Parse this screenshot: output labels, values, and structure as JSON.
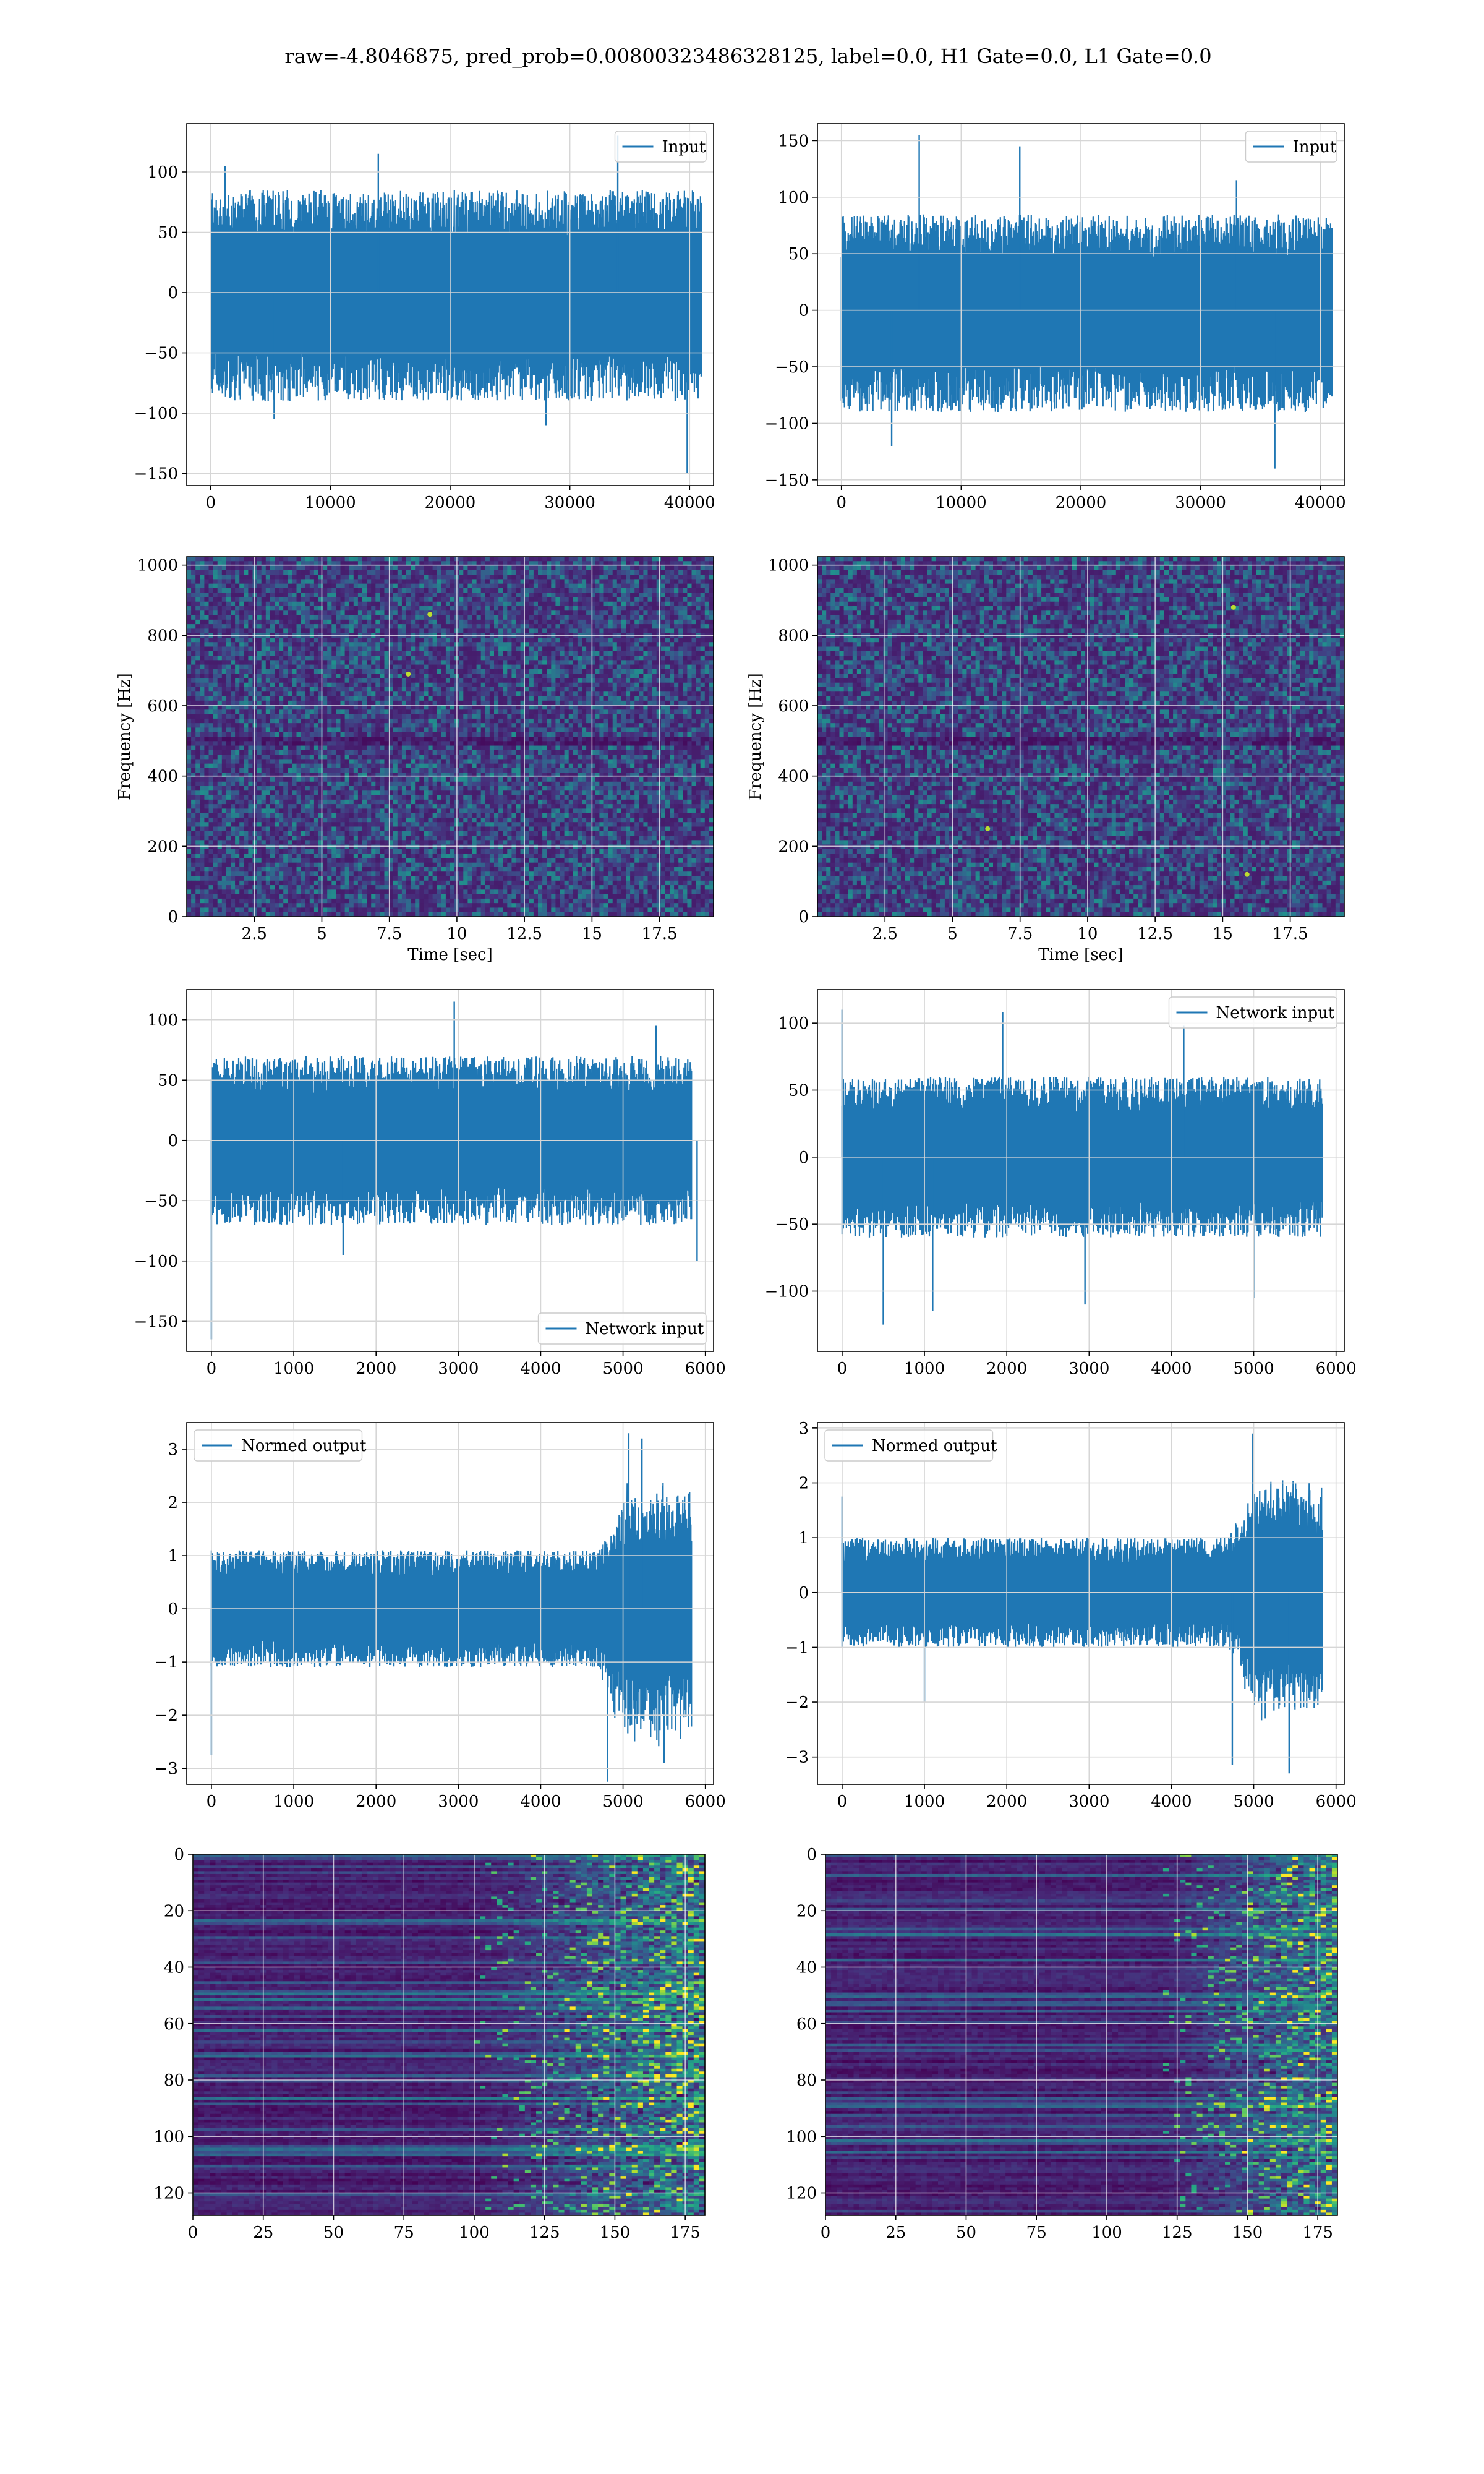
{
  "suptitle": "raw=-4.8046875, pred_prob=0.00800323486328125, label=0.0, H1 Gate=0.0, L1 Gate=0.0",
  "colors": {
    "series": "#1f77b4",
    "grid": "#d6d6d6",
    "viridis_low": "#440154",
    "viridis_high": "#fde725"
  },
  "chart_data": [
    {
      "id": "h1-input",
      "type": "line",
      "xlabel": "",
      "ylabel": "",
      "xlim": [
        -2000,
        42000
      ],
      "ylim": [
        -160,
        140
      ],
      "xticks": [
        0,
        10000,
        20000,
        30000,
        40000
      ],
      "yticks": [
        -150,
        -100,
        -50,
        0,
        50,
        100
      ],
      "grid": true,
      "legend": "upper right",
      "series": [
        {
          "name": "Input",
          "n": 40960,
          "x_range": [
            0,
            40960
          ],
          "band_low": -90,
          "band_high": 85,
          "spikes": [
            [
              1200,
              105
            ],
            [
              5300,
              -105
            ],
            [
              14000,
              115
            ],
            [
              34000,
              130
            ],
            [
              39800,
              -150
            ],
            [
              28000,
              -110
            ]
          ]
        }
      ]
    },
    {
      "id": "l1-input",
      "type": "line",
      "xlabel": "",
      "ylabel": "",
      "xlim": [
        -2000,
        42000
      ],
      "ylim": [
        -155,
        165
      ],
      "xticks": [
        0,
        10000,
        20000,
        30000,
        40000
      ],
      "yticks": [
        -150,
        -100,
        -50,
        0,
        50,
        100,
        150
      ],
      "grid": true,
      "legend": "upper right",
      "series": [
        {
          "name": "Input",
          "n": 40960,
          "x_range": [
            0,
            40960
          ],
          "band_low": -90,
          "band_high": 85,
          "spikes": [
            [
              6500,
              155
            ],
            [
              14900,
              145
            ],
            [
              36200,
              -140
            ],
            [
              4200,
              -120
            ],
            [
              33000,
              115
            ]
          ]
        }
      ]
    },
    {
      "id": "h1-spectrogram",
      "type": "heatmap",
      "xlabel": "Time [sec]",
      "ylabel": "Frequency [Hz]",
      "xlim": [
        0,
        19.5
      ],
      "ylim": [
        0,
        1024
      ],
      "xticks": [
        2.5,
        5.0,
        7.5,
        10.0,
        12.5,
        15.0,
        17.5
      ],
      "yticks": [
        0,
        200,
        400,
        600,
        800,
        1000
      ],
      "grid": true,
      "note_band_hz": 500,
      "hot_spots": [
        [
          8.2,
          690
        ],
        [
          9.0,
          860
        ]
      ]
    },
    {
      "id": "l1-spectrogram",
      "type": "heatmap",
      "xlabel": "Time [sec]",
      "ylabel": "Frequency [Hz]",
      "xlim": [
        0,
        19.5
      ],
      "ylim": [
        0,
        1024
      ],
      "xticks": [
        2.5,
        5.0,
        7.5,
        10.0,
        12.5,
        15.0,
        17.5
      ],
      "yticks": [
        0,
        200,
        400,
        600,
        800,
        1000
      ],
      "grid": true,
      "note_band_hz": 500,
      "hot_spots": [
        [
          15.4,
          880
        ],
        [
          6.3,
          250
        ],
        [
          15.9,
          120
        ]
      ]
    },
    {
      "id": "h1-network-input",
      "type": "line",
      "xlabel": "",
      "ylabel": "",
      "xlim": [
        -300,
        6100
      ],
      "ylim": [
        -175,
        125
      ],
      "xticks": [
        0,
        1000,
        2000,
        3000,
        4000,
        5000,
        6000
      ],
      "yticks": [
        -150,
        -100,
        -50,
        0,
        50,
        100
      ],
      "grid": true,
      "legend": "lower right",
      "series": [
        {
          "name": "Network input",
          "n": 5832,
          "x_range": [
            0,
            5832
          ],
          "band_low": -70,
          "band_high": 70,
          "spikes": [
            [
              0,
              -165
            ],
            [
              2950,
              115
            ],
            [
              1600,
              -95
            ],
            [
              5400,
              95
            ],
            [
              5900,
              -100
            ]
          ]
        }
      ]
    },
    {
      "id": "l1-network-input",
      "type": "line",
      "xlabel": "",
      "ylabel": "",
      "xlim": [
        -300,
        6100
      ],
      "ylim": [
        -145,
        125
      ],
      "xticks": [
        0,
        1000,
        2000,
        3000,
        4000,
        5000,
        6000
      ],
      "yticks": [
        -100,
        -50,
        0,
        50,
        100
      ],
      "grid": true,
      "legend": "upper right",
      "series": [
        {
          "name": "Network input",
          "n": 5832,
          "x_range": [
            0,
            5832
          ],
          "band_low": -60,
          "band_high": 60,
          "spikes": [
            [
              0,
              110
            ],
            [
              500,
              -125
            ],
            [
              1100,
              -115
            ],
            [
              1950,
              108
            ],
            [
              2950,
              -110
            ],
            [
              4150,
              98
            ],
            [
              5000,
              -105
            ]
          ]
        }
      ]
    },
    {
      "id": "h1-normed-output",
      "type": "line",
      "xlabel": "",
      "ylabel": "",
      "xlim": [
        -300,
        6100
      ],
      "ylim": [
        -3.3,
        3.5
      ],
      "xticks": [
        0,
        1000,
        2000,
        3000,
        4000,
        5000,
        6000
      ],
      "yticks": [
        -3,
        -2,
        -1,
        0,
        1,
        2,
        3
      ],
      "grid": true,
      "legend": "upper left",
      "series": [
        {
          "name": "Normed output",
          "n": 5832,
          "x_range": [
            0,
            5832
          ],
          "band_low": -1.1,
          "band_high": 1.1,
          "loud_from": 4700,
          "loud_low": -2.6,
          "loud_high": 2.4,
          "spikes": [
            [
              0,
              -2.75
            ],
            [
              4810,
              -3.25
            ],
            [
              5070,
              3.3
            ],
            [
              5230,
              3.2
            ],
            [
              5500,
              -2.9
            ]
          ]
        }
      ]
    },
    {
      "id": "l1-normed-output",
      "type": "line",
      "xlabel": "",
      "ylabel": "",
      "xlim": [
        -300,
        6100
      ],
      "ylim": [
        -3.5,
        3.1
      ],
      "xticks": [
        0,
        1000,
        2000,
        3000,
        4000,
        5000,
        6000
      ],
      "yticks": [
        -3,
        -2,
        -1,
        0,
        1,
        2,
        3
      ],
      "grid": true,
      "legend": "upper left",
      "series": [
        {
          "name": "Normed output",
          "n": 5832,
          "x_range": [
            0,
            5832
          ],
          "band_low": -1.0,
          "band_high": 1.0,
          "loud_from": 4700,
          "loud_low": -2.4,
          "loud_high": 2.2,
          "spikes": [
            [
              0,
              1.75
            ],
            [
              4740,
              -3.15
            ],
            [
              4990,
              2.9
            ],
            [
              5430,
              -3.3
            ],
            [
              1000,
              -2.0
            ]
          ]
        }
      ]
    },
    {
      "id": "h1-feature-map",
      "type": "heatmap",
      "xlabel": "",
      "ylabel": "",
      "xlim": [
        0,
        182
      ],
      "ylim": [
        128,
        0
      ],
      "xticks": [
        0,
        25,
        50,
        75,
        100,
        125,
        150,
        175
      ],
      "yticks": [
        0,
        20,
        40,
        60,
        80,
        100,
        120
      ],
      "grid": true,
      "rows": 128,
      "cols": 182,
      "active_from_col": 100
    },
    {
      "id": "l1-feature-map",
      "type": "heatmap",
      "xlabel": "",
      "ylabel": "",
      "xlim": [
        0,
        182
      ],
      "ylim": [
        128,
        0
      ],
      "xticks": [
        0,
        25,
        50,
        75,
        100,
        125,
        150,
        175
      ],
      "yticks": [
        0,
        20,
        40,
        60,
        80,
        100,
        120
      ],
      "grid": true,
      "rows": 128,
      "cols": 182,
      "active_from_col": 120
    }
  ]
}
